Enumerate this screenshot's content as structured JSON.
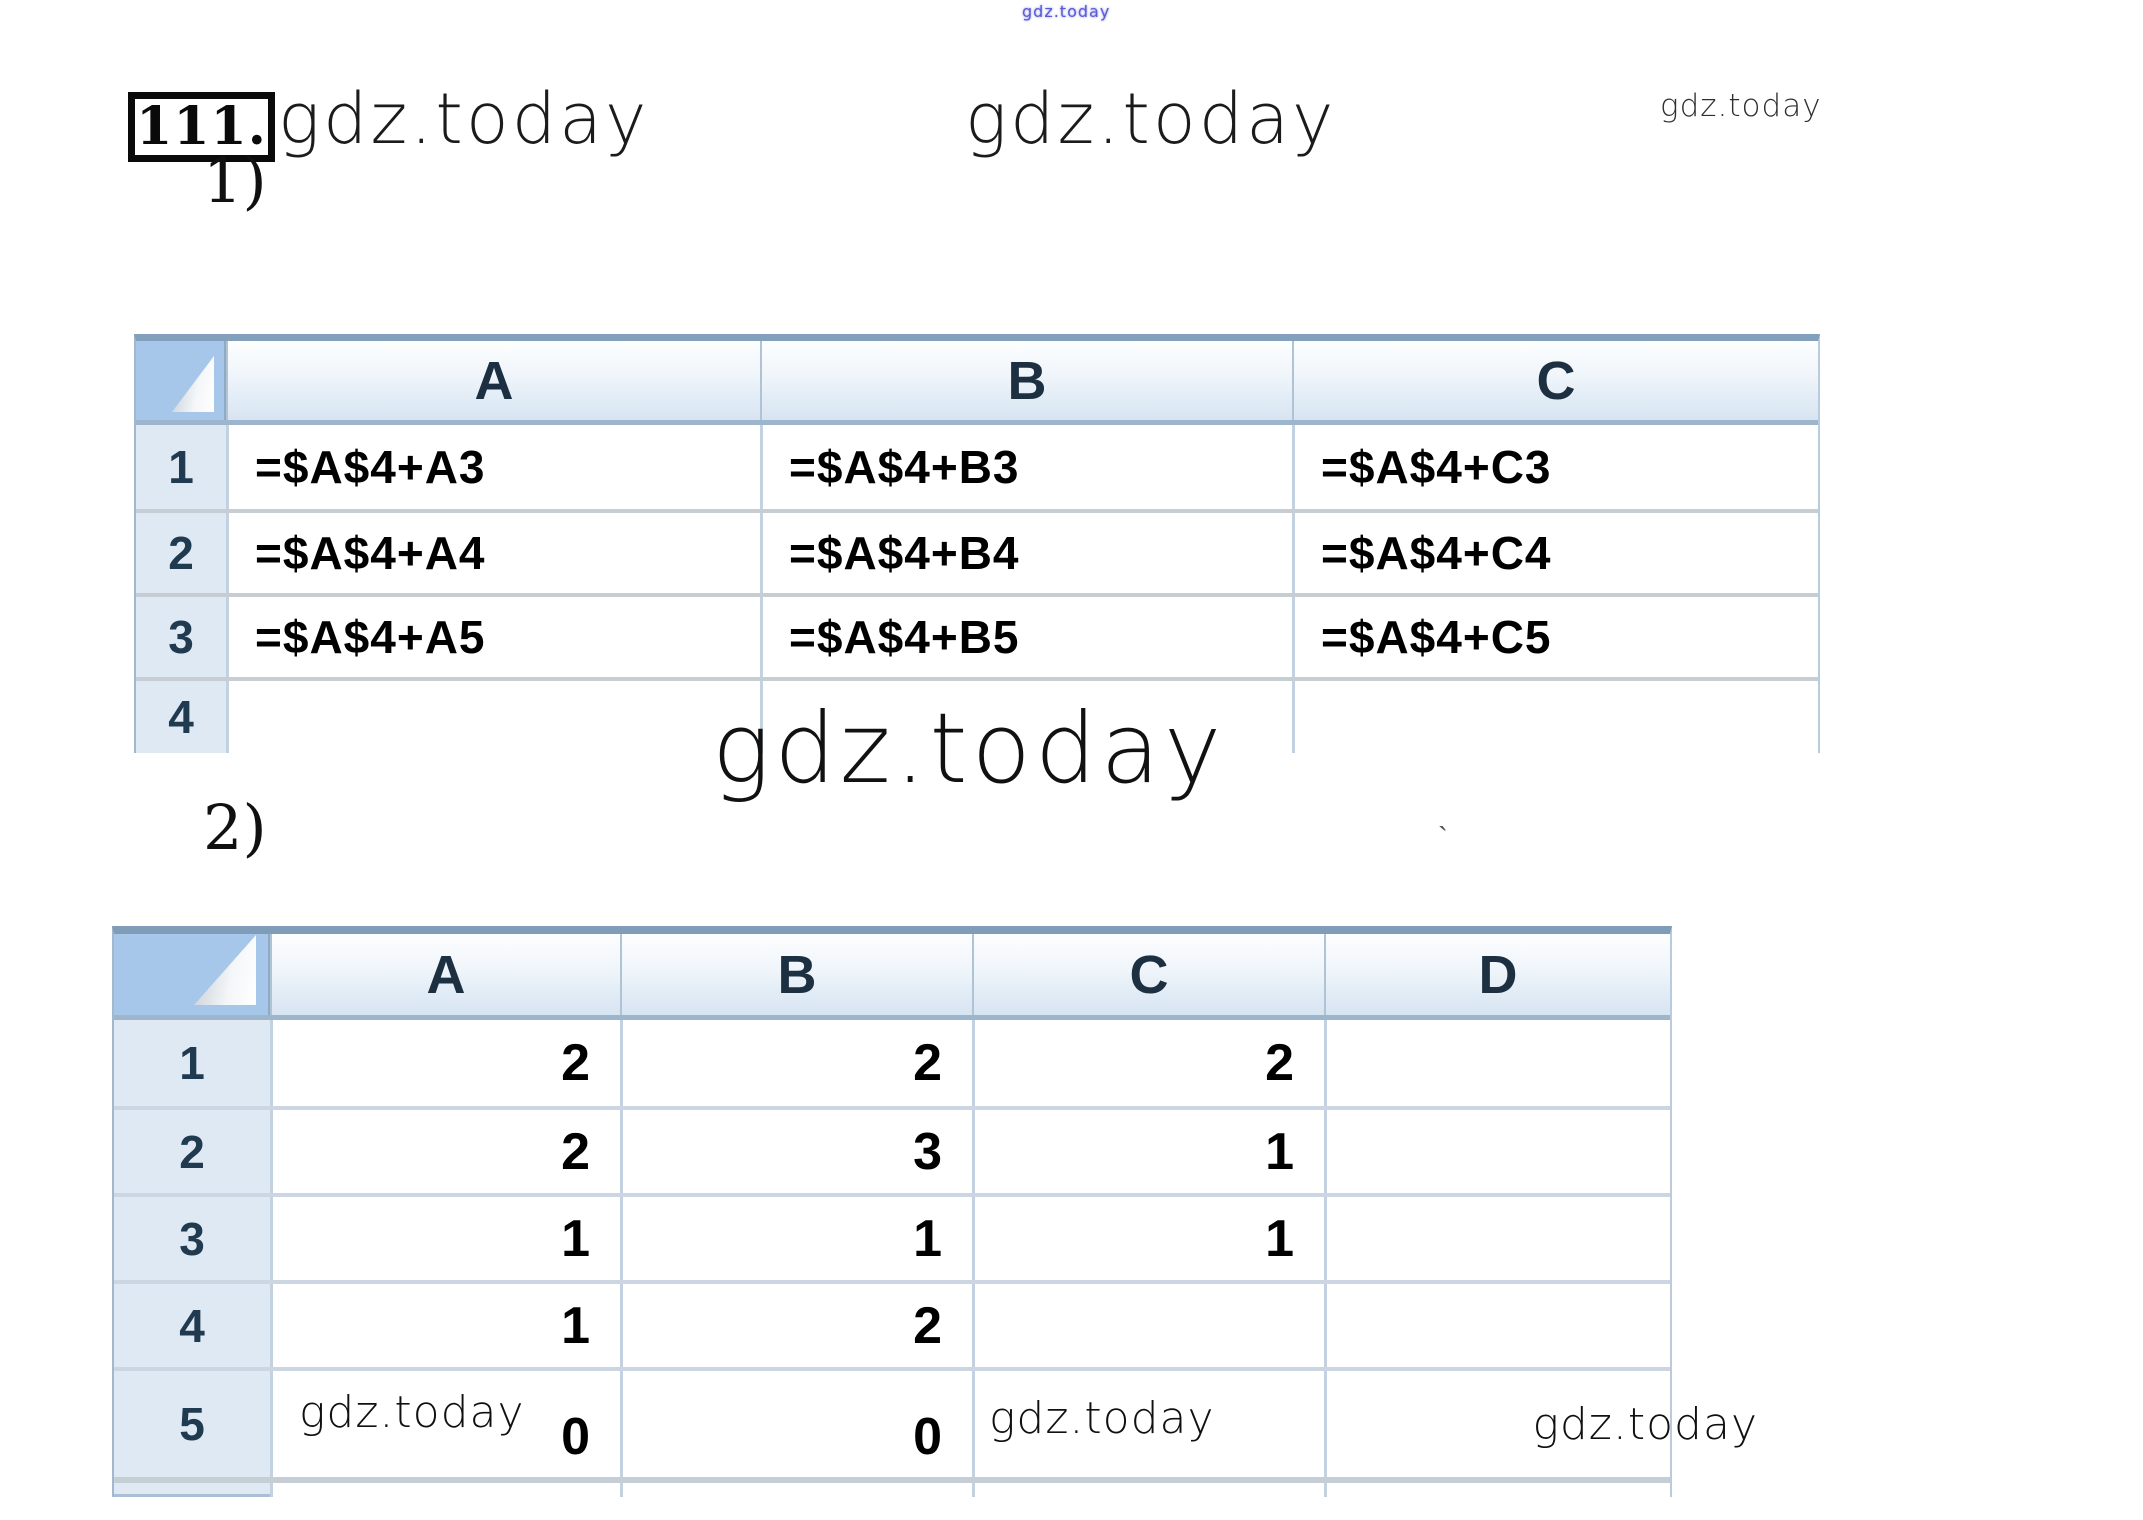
{
  "watermarks": {
    "top_center": "gdz.today",
    "after_number": "gdz.today",
    "top_middle": "gdz.today",
    "top_right": "gdz.today",
    "big_center": "gdz.today"
  },
  "header": {
    "problem_number": "111."
  },
  "sections": {
    "part1": "1)",
    "part2": "2)",
    "stray_mark": "`"
  },
  "table1": {
    "columns": [
      "A",
      "B",
      "C"
    ],
    "rows": [
      {
        "num": "1",
        "cells": [
          "=$A$4+A3",
          "=$A$4+B3",
          "=$A$4+C3"
        ]
      },
      {
        "num": "2",
        "cells": [
          "=$A$4+A4",
          "=$A$4+B4",
          "=$A$4+C4"
        ]
      },
      {
        "num": "3",
        "cells": [
          "=$A$4+A5",
          "=$A$4+B5",
          "=$A$4+C5"
        ]
      },
      {
        "num": "4",
        "cells": [
          "",
          "",
          ""
        ]
      }
    ]
  },
  "table2": {
    "columns": [
      "A",
      "B",
      "C",
      "D"
    ],
    "rows": [
      {
        "num": "1",
        "cells": [
          "2",
          "2",
          "2",
          ""
        ]
      },
      {
        "num": "2",
        "cells": [
          "2",
          "3",
          "1",
          ""
        ]
      },
      {
        "num": "3",
        "cells": [
          "1",
          "1",
          "1",
          ""
        ]
      },
      {
        "num": "4",
        "cells": [
          "1",
          "2",
          "",
          ""
        ]
      },
      {
        "num": "5",
        "cells": [
          "0",
          "0",
          "",
          ""
        ],
        "wm_a": "gdz.today",
        "wm_c": "gdz.today",
        "wm_d": "gdz.today"
      }
    ]
  },
  "colors": {
    "corner_bg": "#a6c7e9",
    "header_gradient_bottom": "#d7e4f1",
    "rowhead_bg": "#dfe9f4",
    "table_top_band": "#7f9db9",
    "grid_line_blue": "#c3d2e1",
    "grid_line_gray": "#c6cdd3",
    "watermark_blue": "#5b5bd6",
    "text": "#000000"
  }
}
